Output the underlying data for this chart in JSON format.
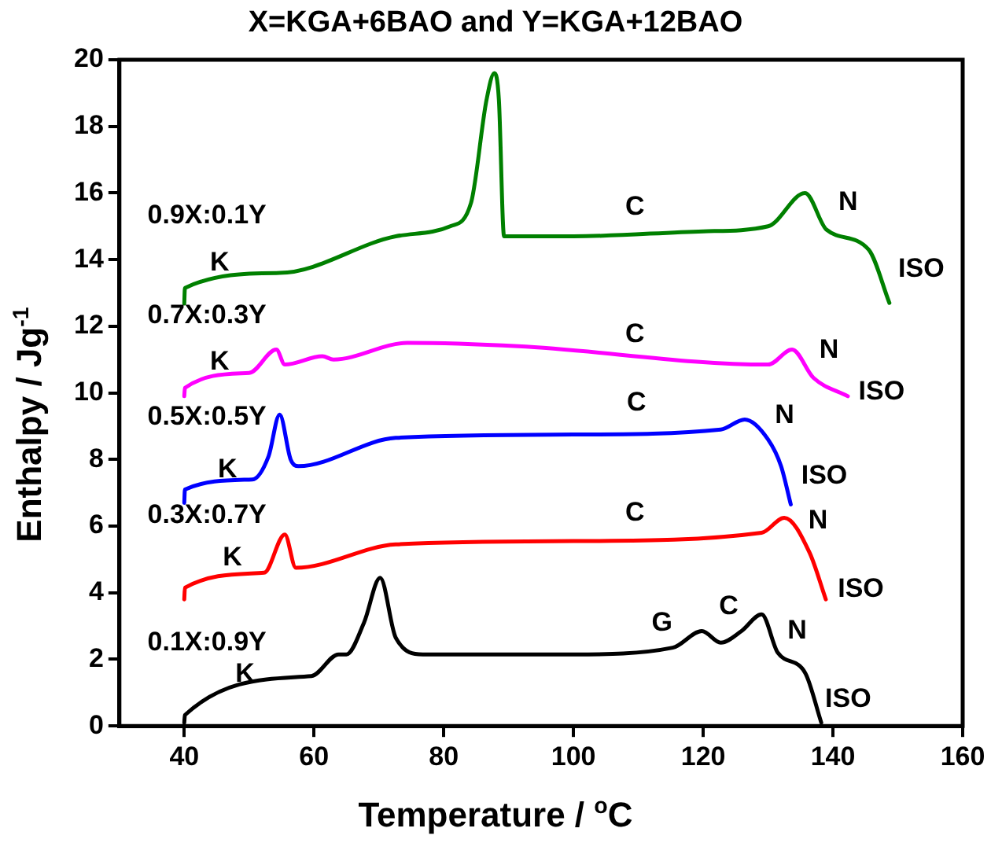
{
  "chart_data": {
    "type": "line",
    "title": "X=KGA+6BAO and Y=KGA+12BAO",
    "xlabel": "Temperature / $^{o}$C",
    "ylabel": "Enthalpy / Jg$^{-1}$",
    "xlim": [
      30,
      160
    ],
    "xticks": [
      40,
      60,
      80,
      100,
      120,
      140,
      160
    ],
    "ylim": [
      0,
      20
    ],
    "yticks": [
      0,
      2,
      4,
      6,
      8,
      10,
      12,
      14,
      16,
      18,
      20
    ],
    "grid": false,
    "legend": false,
    "marker": "none",
    "line_style": "solid",
    "series": [
      {
        "name": "0.9X:0.1Y",
        "color": "#008000",
        "x": [
          40,
          40.1,
          54.7,
          72.6,
          81,
          84.2,
          86.6,
          87.8,
          88.5,
          89.3,
          100,
          120,
          130,
          135.7,
          139,
          145.5,
          148.7
        ],
        "values": [
          12.68,
          13.15,
          13.6,
          14.7,
          15.0,
          15.7,
          18.8,
          19.6,
          18.8,
          14.7,
          14.7,
          14.85,
          15.0,
          16.0,
          14.9,
          14.3,
          12.7
        ]
      },
      {
        "name": "0.7X:0.3Y",
        "color": "#ff00ff",
        "x": [
          40,
          40.1,
          50,
          54.2,
          55.5,
          61.3,
          63,
          74.4,
          91.5,
          130,
          133.7,
          137,
          142.3
        ],
        "values": [
          9.9,
          10.15,
          10.6,
          11.3,
          10.85,
          11.1,
          11.0,
          11.5,
          11.4,
          10.85,
          11.3,
          10.45,
          9.9
        ]
      },
      {
        "name": "0.5X:0.5Y",
        "color": "#0000ff",
        "x": [
          40,
          40.1,
          50.5,
          53,
          54.7,
          56.4,
          57.6,
          72.6,
          100,
          122.7,
          126.4,
          130,
          132,
          133.5
        ],
        "values": [
          6.7,
          7.1,
          7.4,
          8.1,
          9.35,
          8.0,
          7.8,
          8.65,
          8.75,
          8.9,
          9.2,
          8.6,
          7.8,
          6.65
        ]
      },
      {
        "name": "0.3X:0.7Y",
        "color": "#ff0000",
        "x": [
          40,
          40.1,
          52.3,
          55.5,
          57.2,
          72.6,
          100,
          129,
          132.5,
          136.4,
          138.9
        ],
        "values": [
          3.8,
          4.15,
          4.6,
          5.75,
          4.75,
          5.45,
          5.55,
          5.8,
          6.25,
          5.2,
          3.8
        ]
      },
      {
        "name": "0.1X:0.9Y",
        "color": "#000000",
        "x": [
          40,
          40.1,
          59.6,
          63.8,
          65,
          67.7,
          70.2,
          72.6,
          76.8,
          100,
          115.3,
          119.8,
          122.7,
          125.9,
          129,
          131.5,
          135.7,
          138.2
        ],
        "values": [
          0.1,
          0.33,
          1.5,
          2.15,
          2.15,
          3.1,
          4.45,
          2.65,
          2.15,
          2.15,
          2.35,
          2.85,
          2.5,
          2.85,
          3.35,
          2.2,
          1.6,
          0.1
        ]
      }
    ],
    "annotations": [
      "K",
      "C",
      "N",
      "ISO",
      "K",
      "C",
      "N",
      "ISO",
      "K",
      "C",
      "N",
      "ISO",
      "K",
      "C",
      "N",
      "ISO",
      "K",
      "G",
      "C",
      "N",
      "ISO"
    ]
  }
}
